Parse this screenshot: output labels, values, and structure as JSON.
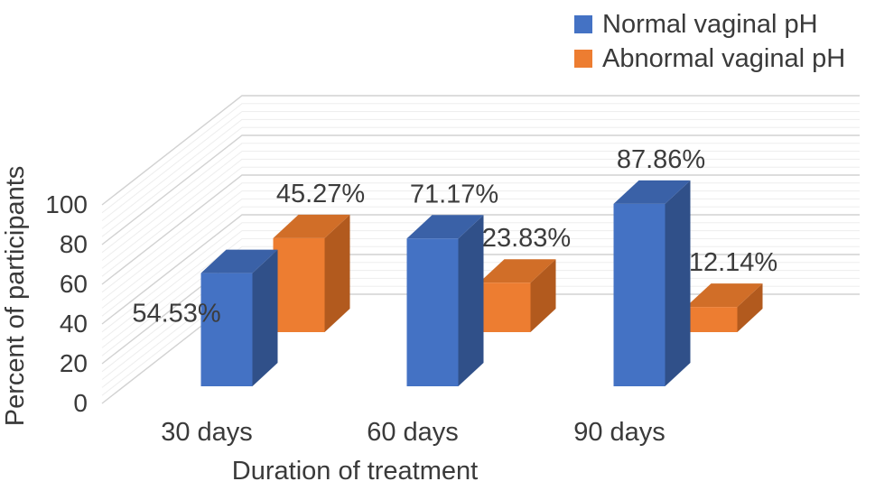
{
  "chart_data": {
    "type": "bar",
    "projection": "3d",
    "title": "",
    "xlabel": "Duration of treatment",
    "ylabel": "Percent of participants",
    "categories": [
      "30 days",
      "60 days",
      "90 days"
    ],
    "series": [
      {
        "name": "Normal vaginal pH",
        "slug": "normal-vaginal-ph",
        "color": "#4472C4",
        "color_top": "#3A61A7",
        "color_side": "#305089",
        "values": [
          54.53,
          71.17,
          87.86
        ],
        "labels": [
          "54.53%",
          "71.17%",
          "87.86%"
        ],
        "label_positions": [
          "left",
          "above",
          "above"
        ]
      },
      {
        "name": "Abnormal vaginal pH",
        "slug": "abnormal-vaginal-ph",
        "color": "#ED7D31",
        "color_top": "#D16E28",
        "color_side": "#B25A1E",
        "values": [
          45.27,
          23.83,
          12.14
        ],
        "labels": [
          "45.27%",
          "23.83%",
          "12.14%"
        ],
        "label_positions": [
          "above",
          "above",
          "above"
        ]
      }
    ],
    "y_ticks": [
      "0",
      "20",
      "40",
      "60",
      "80",
      "100"
    ],
    "y_tick_values": [
      0,
      20,
      40,
      60,
      80,
      100
    ],
    "y_minor_step": 4,
    "ylim": [
      0,
      100
    ],
    "grid": true,
    "legend_position": "top-right"
  },
  "colors": {
    "text": "#3a3a3a",
    "grid_major": "#d2d2d2",
    "grid_minor": "#ededed",
    "background": "#ffffff"
  }
}
